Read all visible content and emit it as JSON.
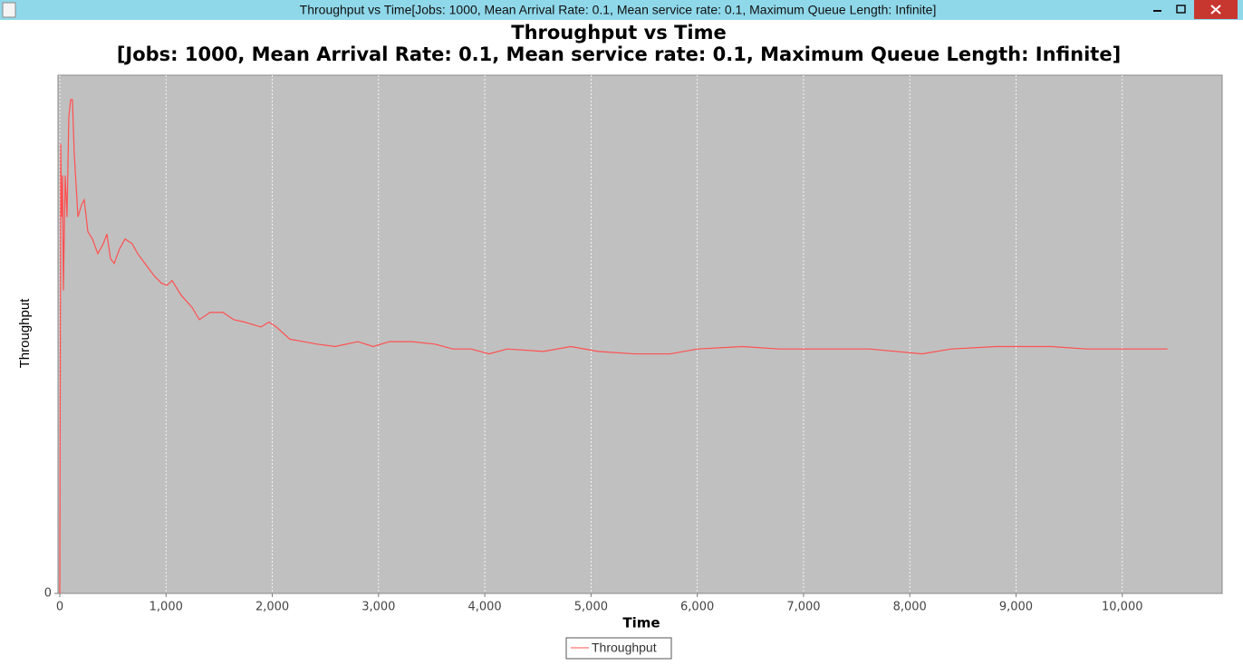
{
  "window": {
    "title": "Throughput vs Time[Jobs: 1000, Mean Arrival Rate: 0.1, Mean service rate: 0.1, Maximum Queue Length: Infinite]"
  },
  "chart_data": {
    "type": "line",
    "title": "Throughput vs Time",
    "subtitle": "[Jobs: 1000, Mean Arrival Rate: 0.1, Mean service rate: 0.1, Maximum Queue Length: Infinite]",
    "x_label": "Time",
    "y_label": "Throughput",
    "xlim": [
      -17,
      10940
    ],
    "ylim": [
      0,
      0.212
    ],
    "xticks": [
      0,
      {
        "value": 1000,
        "label": "1,000"
      },
      {
        "value": 2000,
        "label": "2,000"
      },
      {
        "value": 3000,
        "label": "3,000"
      },
      {
        "value": 4000,
        "label": "4,000"
      },
      {
        "value": 5000,
        "label": "5,000"
      },
      {
        "value": 6000,
        "label": "6,000"
      },
      {
        "value": 7000,
        "label": "7,000"
      },
      {
        "value": 8000,
        "label": "8,000"
      },
      {
        "value": 9000,
        "label": "9,000"
      },
      {
        "value": 10000,
        "label": "10,000"
      }
    ],
    "yticks": [
      0
    ],
    "xgrid": true,
    "background": "#c0c0c0",
    "legend": "bottom",
    "x": [
      0,
      9,
      17,
      26,
      34,
      51,
      68,
      85,
      102,
      119,
      136,
      171,
      205,
      230,
      264,
      307,
      358,
      409,
      443,
      477,
      512,
      563,
      614,
      682,
      733,
      801,
      887,
      955,
      1006,
      1057,
      1142,
      1245,
      1313,
      1415,
      1535,
      1637,
      1739,
      1893,
      1969,
      2038,
      2165,
      2293,
      2421,
      2592,
      2805,
      2950,
      3103,
      3316,
      3529,
      3700,
      3870,
      4041,
      4211,
      4552,
      4808,
      5064,
      5405,
      5746,
      6002,
      6428,
      6769,
      7110,
      7621,
      8116,
      8389,
      8815,
      9327,
      9668,
      10009,
      10426
    ],
    "series": [
      {
        "name": "Throughput",
        "color": "#ff5050",
        "values": [
          0,
          0.184,
          0.154,
          0.171,
          0.124,
          0.171,
          0.154,
          0.195,
          0.202,
          0.202,
          0.18,
          0.154,
          0.159,
          0.161,
          0.148,
          0.145,
          0.139,
          0.143,
          0.147,
          0.137,
          0.135,
          0.141,
          0.145,
          0.143,
          0.139,
          0.135,
          0.13,
          0.127,
          0.126,
          0.128,
          0.122,
          0.117,
          0.112,
          0.115,
          0.115,
          0.112,
          0.111,
          0.109,
          0.111,
          0.109,
          0.104,
          0.103,
          0.102,
          0.101,
          0.103,
          0.101,
          0.103,
          0.103,
          0.102,
          0.1,
          0.1,
          0.098,
          0.1,
          0.099,
          0.101,
          0.099,
          0.098,
          0.098,
          0.1,
          0.101,
          0.1,
          0.1,
          0.1,
          0.098,
          0.1,
          0.101,
          0.101,
          0.1,
          0.1,
          0.1
        ]
      }
    ]
  }
}
